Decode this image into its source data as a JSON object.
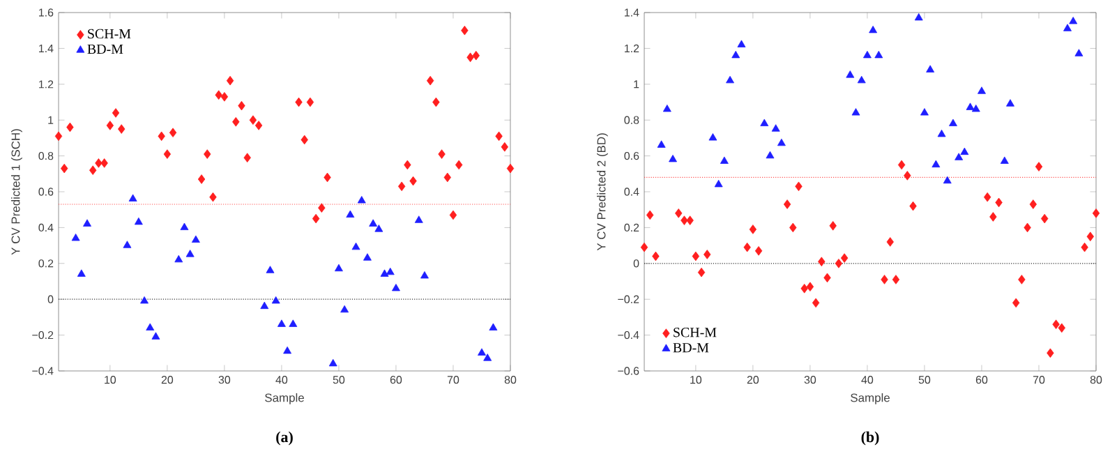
{
  "chart_data": [
    {
      "type": "scatter",
      "xlabel": "Sample",
      "ylabel": "Y CV Predicted 1 (SCH)",
      "xlim": [
        1,
        80
      ],
      "ylim": [
        -0.4,
        1.6
      ],
      "xticks": [
        10,
        20,
        30,
        40,
        50,
        60,
        70,
        80
      ],
      "yticks": [
        {
          "value": -0.4,
          "label": "−0.4"
        },
        {
          "value": -0.2,
          "label": "−0.2"
        },
        0,
        0.2,
        0.4,
        0.6,
        0.8,
        1,
        1.2,
        1.4,
        1.6
      ],
      "legend": "top left",
      "grid": false,
      "series": [
        {
          "name": "SCH-M",
          "color": "#ff1f1f",
          "marker": "diamond",
          "x": [
            1,
            2,
            3,
            7,
            8,
            9,
            10,
            11,
            12,
            19,
            20,
            21,
            26,
            27,
            28,
            29,
            30,
            31,
            32,
            33,
            34,
            35,
            36,
            43,
            44,
            45,
            46,
            47,
            48,
            61,
            62,
            63,
            66,
            67,
            68,
            69,
            70,
            71,
            72,
            73,
            74,
            78,
            79,
            80
          ],
          "values": [
            0.91,
            0.73,
            0.96,
            0.72,
            0.76,
            0.76,
            0.97,
            1.04,
            0.95,
            0.91,
            0.81,
            0.93,
            0.67,
            0.81,
            0.57,
            1.14,
            1.13,
            1.22,
            0.99,
            1.08,
            0.79,
            1.0,
            0.97,
            1.1,
            0.89,
            1.1,
            0.45,
            0.51,
            0.68,
            0.63,
            0.75,
            0.66,
            1.22,
            1.1,
            0.81,
            0.68,
            0.47,
            0.75,
            1.5,
            1.35,
            1.36,
            0.91,
            0.85,
            0.73
          ]
        },
        {
          "name": "BD-M",
          "color": "#1f1fff",
          "marker": "triangle",
          "x": [
            4,
            5,
            6,
            13,
            14,
            15,
            16,
            17,
            18,
            22,
            23,
            24,
            25,
            37,
            38,
            39,
            40,
            41,
            42,
            49,
            50,
            51,
            52,
            53,
            54,
            55,
            56,
            57,
            58,
            59,
            60,
            64,
            65,
            75,
            76,
            77
          ],
          "values": [
            0.34,
            0.14,
            0.42,
            0.3,
            0.56,
            0.43,
            -0.01,
            -0.16,
            -0.21,
            0.22,
            0.4,
            0.25,
            0.33,
            -0.04,
            0.16,
            -0.01,
            -0.14,
            -0.29,
            -0.14,
            -0.36,
            0.17,
            -0.06,
            0.47,
            0.29,
            0.55,
            0.23,
            0.42,
            0.39,
            0.14,
            0.15,
            0.06,
            0.44,
            0.13,
            -0.3,
            -0.33,
            -0.16
          ]
        }
      ],
      "ref_lines": [
        {
          "axis": "y",
          "value": 0.53,
          "color": "#ff5050",
          "line_style": "dotted"
        },
        {
          "axis": "y",
          "value": 0,
          "color": "#303030",
          "line_style": "dotted"
        }
      ],
      "annotations": [
        "(a)"
      ]
    },
    {
      "type": "scatter",
      "xlabel": "Sample",
      "ylabel": "Y CV Predicted 2 (BD)",
      "xlim": [
        1,
        80
      ],
      "ylim": [
        -0.6,
        1.4
      ],
      "xticks": [
        10,
        20,
        30,
        40,
        50,
        60,
        70,
        80
      ],
      "yticks": [
        {
          "value": -0.6,
          "label": "−0.6"
        },
        {
          "value": -0.4,
          "label": "−0.4"
        },
        {
          "value": -0.2,
          "label": "−0.2"
        },
        0,
        0.2,
        0.4,
        0.6,
        0.8,
        1,
        1.2,
        1.4
      ],
      "legend": "bottom left",
      "grid": false,
      "series": [
        {
          "name": "SCH-M",
          "color": "#ff1f1f",
          "marker": "diamond",
          "x": [
            1,
            2,
            3,
            7,
            8,
            9,
            10,
            11,
            12,
            19,
            20,
            21,
            26,
            27,
            28,
            29,
            30,
            31,
            32,
            33,
            34,
            35,
            36,
            43,
            44,
            45,
            46,
            47,
            48,
            61,
            62,
            63,
            66,
            67,
            68,
            69,
            70,
            71,
            72,
            73,
            74,
            78,
            79,
            80
          ],
          "values": [
            0.09,
            0.27,
            0.04,
            0.28,
            0.24,
            0.24,
            0.04,
            -0.05,
            0.05,
            0.09,
            0.19,
            0.07,
            0.33,
            0.2,
            0.43,
            -0.14,
            -0.13,
            -0.22,
            0.01,
            -0.08,
            0.21,
            0.0,
            0.03,
            -0.09,
            0.12,
            -0.09,
            0.55,
            0.49,
            0.32,
            0.37,
            0.26,
            0.34,
            -0.22,
            -0.09,
            0.2,
            0.33,
            0.54,
            0.25,
            -0.5,
            -0.34,
            -0.36,
            0.09,
            0.15,
            0.28
          ]
        },
        {
          "name": "BD-M",
          "color": "#1f1fff",
          "marker": "triangle",
          "x": [
            4,
            5,
            6,
            13,
            14,
            15,
            16,
            17,
            18,
            22,
            23,
            24,
            25,
            37,
            38,
            39,
            40,
            41,
            42,
            49,
            50,
            51,
            52,
            53,
            54,
            55,
            56,
            57,
            58,
            59,
            60,
            64,
            65,
            75,
            76,
            77
          ],
          "values": [
            0.66,
            0.86,
            0.58,
            0.7,
            0.44,
            0.57,
            1.02,
            1.16,
            1.22,
            0.78,
            0.6,
            0.75,
            0.67,
            1.05,
            0.84,
            1.02,
            1.16,
            1.3,
            1.16,
            1.37,
            0.84,
            1.08,
            0.55,
            0.72,
            0.46,
            0.78,
            0.59,
            0.62,
            0.87,
            0.86,
            0.96,
            0.57,
            0.89,
            1.31,
            1.35,
            1.17
          ]
        }
      ],
      "ref_lines": [
        {
          "axis": "y",
          "value": 0.48,
          "color": "#ff5050",
          "line_style": "dotted"
        },
        {
          "axis": "y",
          "value": 0,
          "color": "#303030",
          "line_style": "dotted"
        }
      ],
      "annotations": [
        "(b)"
      ]
    }
  ]
}
